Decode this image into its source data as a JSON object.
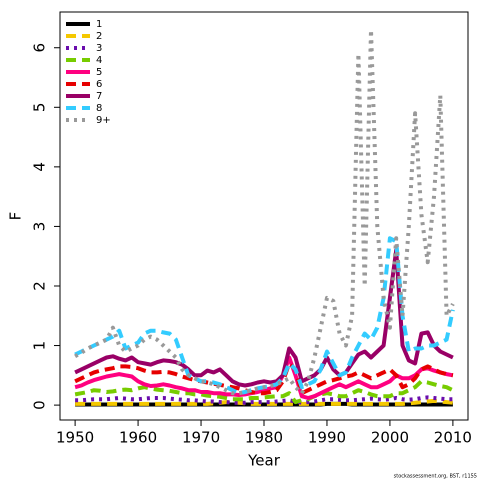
{
  "chart_data": {
    "type": "line",
    "xlabel": "Year",
    "ylabel": "F",
    "footnote": "stockassessment.org, BST, r1155",
    "xlim": [
      1947.6,
      2012.4
    ],
    "ylim": [
      -0.25,
      6.6
    ],
    "xticks": [
      1950,
      1960,
      1970,
      1980,
      1990,
      2000,
      2010
    ],
    "yticks": [
      0,
      1,
      2,
      3,
      4,
      5,
      6
    ],
    "legend": "top-left",
    "x": [
      1950,
      1951,
      1952,
      1953,
      1954,
      1955,
      1956,
      1957,
      1958,
      1959,
      1960,
      1961,
      1962,
      1963,
      1964,
      1965,
      1966,
      1967,
      1968,
      1969,
      1970,
      1971,
      1972,
      1973,
      1974,
      1975,
      1976,
      1977,
      1978,
      1979,
      1980,
      1981,
      1982,
      1983,
      1984,
      1985,
      1986,
      1987,
      1988,
      1989,
      1990,
      1991,
      1992,
      1993,
      1994,
      1995,
      1996,
      1997,
      1998,
      1999,
      2000,
      2001,
      2002,
      2003,
      2004,
      2005,
      2006,
      2007,
      2008,
      2009,
      2010
    ],
    "series": [
      {
        "name": "1",
        "color": "#000000",
        "style": "solid",
        "values": [
          0.01,
          0.01,
          0.01,
          0.01,
          0.01,
          0.01,
          0.01,
          0.01,
          0.01,
          0.01,
          0.01,
          0.01,
          0.01,
          0.01,
          0.01,
          0.01,
          0.01,
          0.01,
          0.01,
          0.01,
          0.01,
          0.01,
          0.01,
          0.01,
          0.01,
          0.01,
          0.01,
          0.01,
          0.01,
          0.01,
          0.01,
          0.01,
          0.01,
          0.01,
          0.01,
          0.01,
          0.01,
          0.01,
          0.01,
          0.01,
          0.02,
          0.02,
          0.02,
          0.02,
          0.01,
          0.01,
          0.01,
          0.01,
          0.01,
          0.01,
          0.01,
          0.01,
          0.01,
          0.01,
          0.01,
          0.01,
          0.01,
          0.01,
          0.01,
          0.01,
          0.01
        ]
      },
      {
        "name": "2",
        "color": "#f5c800",
        "style": "dashed",
        "values": [
          0.02,
          0.02,
          0.02,
          0.02,
          0.02,
          0.02,
          0.02,
          0.02,
          0.02,
          0.02,
          0.02,
          0.02,
          0.02,
          0.02,
          0.02,
          0.02,
          0.02,
          0.02,
          0.02,
          0.02,
          0.02,
          0.02,
          0.03,
          0.04,
          0.05,
          0.05,
          0.04,
          0.03,
          0.02,
          0.02,
          0.02,
          0.02,
          0.02,
          0.02,
          0.02,
          0.02,
          0.02,
          0.02,
          0.02,
          0.02,
          0.02,
          0.02,
          0.02,
          0.02,
          0.02,
          0.02,
          0.02,
          0.02,
          0.02,
          0.02,
          0.02,
          0.02,
          0.02,
          0.03,
          0.04,
          0.05,
          0.06,
          0.07,
          0.06,
          0.05,
          0.04
        ]
      },
      {
        "name": "3",
        "color": "#6a0dad",
        "style": "dotted",
        "values": [
          0.08,
          0.08,
          0.09,
          0.1,
          0.1,
          0.1,
          0.11,
          0.12,
          0.11,
          0.1,
          0.1,
          0.11,
          0.12,
          0.12,
          0.12,
          0.11,
          0.1,
          0.09,
          0.08,
          0.08,
          0.07,
          0.06,
          0.06,
          0.05,
          0.05,
          0.04,
          0.04,
          0.04,
          0.05,
          0.05,
          0.05,
          0.05,
          0.06,
          0.07,
          0.08,
          0.06,
          0.04,
          0.05,
          0.06,
          0.08,
          0.1,
          0.1,
          0.09,
          0.08,
          0.08,
          0.09,
          0.1,
          0.11,
          0.1,
          0.09,
          0.1,
          0.12,
          0.1,
          0.09,
          0.1,
          0.12,
          0.13,
          0.12,
          0.11,
          0.1,
          0.1
        ]
      },
      {
        "name": "4",
        "color": "#77cc00",
        "style": "dashed",
        "values": [
          0.18,
          0.2,
          0.22,
          0.25,
          0.24,
          0.22,
          0.23,
          0.25,
          0.26,
          0.25,
          0.28,
          0.3,
          0.28,
          0.26,
          0.25,
          0.24,
          0.22,
          0.2,
          0.2,
          0.18,
          0.18,
          0.16,
          0.15,
          0.14,
          0.12,
          0.1,
          0.1,
          0.1,
          0.12,
          0.12,
          0.13,
          0.14,
          0.15,
          0.15,
          0.2,
          0.05,
          0.08,
          0.1,
          0.15,
          0.18,
          0.2,
          0.18,
          0.15,
          0.15,
          0.2,
          0.25,
          0.22,
          0.18,
          0.15,
          0.15,
          0.15,
          0.2,
          0.2,
          0.25,
          0.3,
          0.4,
          0.38,
          0.35,
          0.32,
          0.3,
          0.25
        ]
      },
      {
        "name": "5",
        "color": "#ff0080",
        "style": "solid",
        "values": [
          0.3,
          0.33,
          0.38,
          0.42,
          0.45,
          0.48,
          0.5,
          0.52,
          0.5,
          0.48,
          0.4,
          0.35,
          0.32,
          0.33,
          0.35,
          0.33,
          0.3,
          0.28,
          0.25,
          0.25,
          0.22,
          0.22,
          0.2,
          0.2,
          0.18,
          0.18,
          0.17,
          0.18,
          0.2,
          0.22,
          0.25,
          0.28,
          0.3,
          0.5,
          0.8,
          0.5,
          0.15,
          0.12,
          0.15,
          0.2,
          0.25,
          0.3,
          0.35,
          0.3,
          0.35,
          0.4,
          0.35,
          0.3,
          0.3,
          0.35,
          0.4,
          0.5,
          0.45,
          0.45,
          0.5,
          0.6,
          0.62,
          0.58,
          0.55,
          0.52,
          0.5
        ]
      },
      {
        "name": "6",
        "color": "#e60000",
        "style": "dashed",
        "values": [
          0.4,
          0.45,
          0.5,
          0.55,
          0.58,
          0.6,
          0.62,
          0.65,
          0.65,
          0.64,
          0.62,
          0.58,
          0.55,
          0.55,
          0.56,
          0.55,
          0.52,
          0.48,
          0.45,
          0.42,
          0.4,
          0.38,
          0.36,
          0.34,
          0.32,
          0.3,
          0.28,
          0.25,
          0.22,
          0.2,
          0.2,
          0.22,
          0.25,
          0.4,
          0.7,
          0.6,
          0.2,
          0.25,
          0.3,
          0.35,
          0.4,
          0.42,
          0.45,
          0.48,
          0.5,
          0.55,
          0.5,
          0.45,
          0.5,
          0.55,
          0.6,
          0.5,
          0.3,
          0.35,
          0.45,
          0.6,
          0.65,
          0.6,
          0.55,
          0.52,
          0.5
        ]
      },
      {
        "name": "7",
        "color": "#990066",
        "style": "solid",
        "values": [
          0.55,
          0.6,
          0.65,
          0.7,
          0.75,
          0.8,
          0.82,
          0.78,
          0.75,
          0.8,
          0.72,
          0.7,
          0.68,
          0.72,
          0.75,
          0.74,
          0.72,
          0.68,
          0.6,
          0.5,
          0.5,
          0.58,
          0.55,
          0.6,
          0.5,
          0.4,
          0.35,
          0.33,
          0.35,
          0.38,
          0.4,
          0.38,
          0.4,
          0.5,
          0.95,
          0.8,
          0.4,
          0.45,
          0.5,
          0.6,
          0.8,
          0.6,
          0.5,
          0.55,
          0.7,
          0.85,
          0.9,
          0.8,
          0.9,
          1.0,
          1.8,
          2.6,
          1.0,
          0.75,
          0.7,
          1.2,
          1.22,
          1.0,
          0.9,
          0.85,
          0.8
        ]
      },
      {
        "name": "8",
        "color": "#33ccff",
        "style": "dashed",
        "values": [
          0.85,
          0.9,
          0.95,
          1.0,
          1.05,
          1.1,
          1.15,
          1.25,
          0.95,
          1.0,
          1.05,
          1.2,
          1.25,
          1.25,
          1.22,
          1.2,
          1.1,
          0.8,
          0.5,
          0.45,
          0.4,
          0.4,
          0.38,
          0.35,
          0.3,
          0.25,
          0.2,
          0.22,
          0.25,
          0.28,
          0.3,
          0.32,
          0.35,
          0.45,
          0.7,
          0.6,
          0.3,
          0.35,
          0.4,
          0.6,
          0.9,
          0.7,
          0.5,
          0.55,
          0.8,
          1.0,
          1.2,
          1.1,
          1.3,
          1.8,
          2.8,
          2.75,
          1.5,
          0.9,
          0.95,
          0.95,
          1.0,
          1.0,
          1.05,
          1.1,
          1.6
        ]
      },
      {
        "name": "9+",
        "color": "#999999",
        "style": "dotted",
        "values": [
          0.82,
          0.88,
          0.95,
          1.0,
          1.05,
          1.1,
          1.3,
          1.0,
          0.9,
          0.95,
          1.0,
          1.1,
          1.15,
          1.1,
          1.0,
          0.9,
          0.8,
          0.6,
          0.5,
          0.45,
          0.4,
          0.38,
          0.35,
          0.3,
          0.25,
          0.2,
          0.2,
          0.22,
          0.25,
          0.28,
          0.3,
          0.32,
          0.35,
          0.4,
          0.45,
          0.3,
          0.2,
          0.4,
          0.8,
          1.3,
          1.8,
          1.75,
          1.2,
          1.0,
          1.5,
          5.9,
          2.0,
          6.3,
          3.0,
          1.8,
          1.3,
          2.8,
          1.5,
          3.0,
          4.9,
          3.2,
          2.4,
          3.5,
          5.2,
          1.5,
          1.7
        ]
      }
    ]
  }
}
